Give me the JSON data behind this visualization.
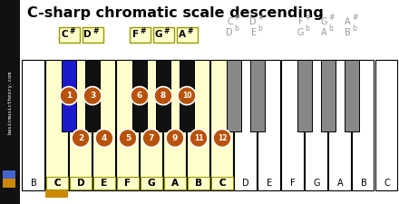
{
  "title": "C-sharp chromatic scale descending",
  "bg_color": "#ffffff",
  "sidebar_color": "#111111",
  "sidebar_text": "basicmusictheory.com",
  "white_keys": [
    "B",
    "C",
    "D",
    "E",
    "F",
    "G",
    "A",
    "B",
    "C",
    "D",
    "E",
    "F",
    "G",
    "A",
    "B",
    "C"
  ],
  "n_white": 16,
  "black_gap_after_white": [
    1,
    2,
    4,
    5,
    6,
    8,
    9,
    11,
    12,
    13
  ],
  "black_key_colors": [
    "#1a1acc",
    "#111111",
    "#111111",
    "#111111",
    "#111111",
    "#888888",
    "#888888",
    "#888888",
    "#888888",
    "#888888"
  ],
  "highlighted_white": [
    1,
    2,
    3,
    4,
    5,
    6,
    7,
    8
  ],
  "highlight_yellow": "#ffffcc",
  "orange_underline": "#cc8800",
  "circle_color": "#b8520a",
  "label_boxes": [
    {
      "text": "C#",
      "bidx": 0,
      "box": true
    },
    {
      "text": "D#",
      "bidx": 1,
      "box": true
    },
    {
      "text": "F#",
      "bidx": 2,
      "box": true
    },
    {
      "text": "G#",
      "bidx": 3,
      "box": true
    },
    {
      "text": "A#",
      "bidx": 4,
      "box": true
    },
    {
      "text": "C#",
      "bidx": 5,
      "box": false
    },
    {
      "text": "D#",
      "bidx": 6,
      "box": false
    },
    {
      "text": "F#",
      "bidx": 7,
      "box": false
    },
    {
      "text": "G#",
      "bidx": 8,
      "box": false
    },
    {
      "text": "A#",
      "bidx": 9,
      "box": false
    }
  ],
  "sub_labels": [
    {
      "text": "Db",
      "bidx": 5
    },
    {
      "text": "Eb",
      "bidx": 6
    },
    {
      "text": "Gb",
      "bidx": 7
    },
    {
      "text": "Ab",
      "bidx": 8
    },
    {
      "text": "Bb",
      "bidx": 9
    }
  ],
  "scale_black": [
    {
      "label": "1",
      "bidx": 0
    },
    {
      "label": "3",
      "bidx": 1
    },
    {
      "label": "6",
      "bidx": 2
    },
    {
      "label": "8",
      "bidx": 3
    },
    {
      "label": "10",
      "bidx": 4
    }
  ],
  "scale_white": [
    {
      "label": "2",
      "widx": 2
    },
    {
      "label": "4",
      "widx": 3
    },
    {
      "label": "5",
      "widx": 4
    },
    {
      "label": "7",
      "widx": 5
    },
    {
      "label": "9",
      "widx": 6
    },
    {
      "label": "11",
      "widx": 7
    },
    {
      "label": "12",
      "widx": 8
    }
  ]
}
